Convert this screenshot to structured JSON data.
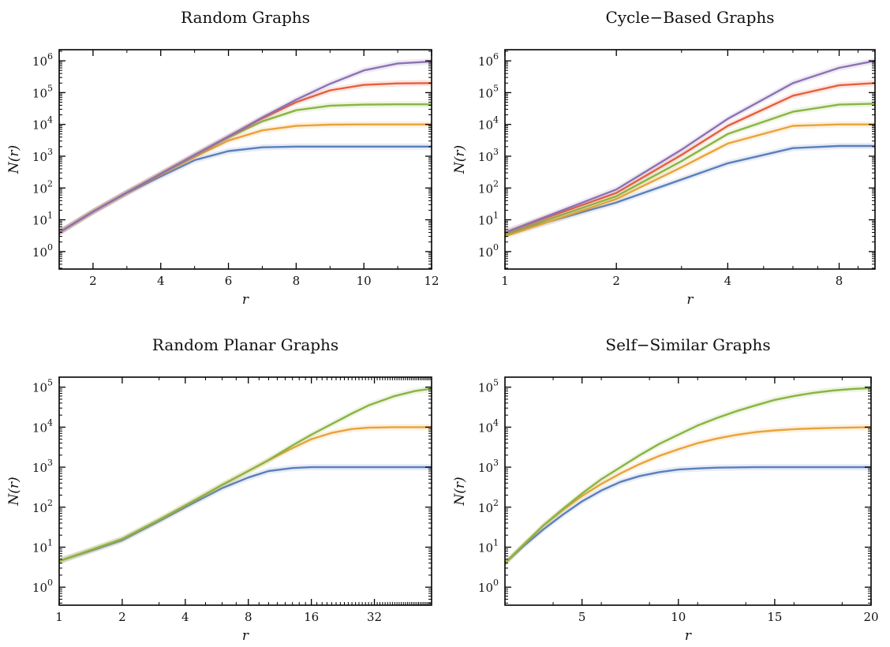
{
  "colors": {
    "blue": "#5b7fbc",
    "orange": "#e8a33a",
    "green": "#8ab443",
    "red": "#e4603d",
    "purple": "#8e72b3"
  },
  "chart_data": [
    {
      "type": "line",
      "title": "Random Graphs",
      "xlabel": "r",
      "ylabel": "N(r)",
      "xscale": "linear",
      "yscale": "log",
      "xlim": [
        1,
        12
      ],
      "ylim_log10": [
        -0.55,
        6.35
      ],
      "xticks": [
        2,
        4,
        6,
        8,
        10,
        12
      ],
      "xtick_labels": [
        "2",
        "4",
        "6",
        "8",
        "10",
        "12"
      ],
      "yticks_log10": [
        0,
        1,
        2,
        3,
        4,
        5,
        6
      ],
      "grid": false,
      "series": [
        {
          "color": "blue",
          "x": [
            1,
            2,
            3,
            4,
            5,
            6,
            7,
            8,
            9,
            10,
            11,
            12
          ],
          "y": [
            4,
            18,
            70,
            230,
            750,
            1450,
            1900,
            2000,
            2000,
            2000,
            2000,
            2000
          ]
        },
        {
          "color": "orange",
          "x": [
            1,
            2,
            3,
            4,
            5,
            6,
            7,
            8,
            9,
            10,
            11,
            12
          ],
          "y": [
            4,
            18,
            72,
            270,
            950,
            3100,
            6500,
            9000,
            9800,
            10000,
            10000,
            10000
          ]
        },
        {
          "color": "green",
          "x": [
            1,
            2,
            3,
            4,
            5,
            6,
            7,
            8,
            9,
            10,
            11,
            12
          ],
          "y": [
            4,
            18,
            72,
            275,
            1050,
            3900,
            12500,
            28000,
            39000,
            42000,
            43000,
            43000
          ]
        },
        {
          "color": "red",
          "x": [
            1,
            2,
            3,
            4,
            5,
            6,
            7,
            8,
            9,
            10,
            11,
            12
          ],
          "y": [
            4,
            18,
            72,
            280,
            1080,
            4100,
            15500,
            50000,
            118000,
            175000,
            195000,
            200000
          ]
        },
        {
          "color": "purple",
          "x": [
            1,
            2,
            3,
            4,
            5,
            6,
            7,
            8,
            9,
            10,
            11,
            12
          ],
          "y": [
            4,
            18,
            72,
            280,
            1100,
            4200,
            16500,
            60000,
            190000,
            500000,
            830000,
            950000
          ]
        }
      ]
    },
    {
      "type": "line",
      "title": "Cycle−Based Graphs",
      "xlabel": "r",
      "ylabel": "N(r)",
      "xscale": "log",
      "yscale": "log",
      "xlim": [
        1,
        10
      ],
      "ylim_log10": [
        -0.55,
        6.35
      ],
      "xticks": [
        1,
        2,
        4,
        8
      ],
      "xtick_labels": [
        "1",
        "2",
        "4",
        "8"
      ],
      "yticks_log10": [
        0,
        1,
        2,
        3,
        4,
        5,
        6
      ],
      "grid": false,
      "series": [
        {
          "color": "blue",
          "x": [
            1,
            2,
            4,
            6,
            8,
            10
          ],
          "y": [
            3.5,
            35,
            600,
            1800,
            2100,
            2100
          ]
        },
        {
          "color": "orange",
          "x": [
            1,
            2,
            3,
            4,
            6,
            8,
            10
          ],
          "y": [
            3,
            45,
            450,
            2500,
            9000,
            10000,
            10000
          ]
        },
        {
          "color": "green",
          "x": [
            1,
            2,
            3,
            4,
            6,
            8,
            10
          ],
          "y": [
            3.5,
            55,
            700,
            5000,
            25000,
            42000,
            45000
          ]
        },
        {
          "color": "red",
          "x": [
            1,
            2,
            3,
            4,
            6,
            8,
            10
          ],
          "y": [
            4,
            70,
            1100,
            9000,
            80000,
            170000,
            200000
          ]
        },
        {
          "color": "purple",
          "x": [
            1,
            2,
            3,
            4,
            6,
            8,
            10
          ],
          "y": [
            4,
            90,
            1600,
            15000,
            200000,
            600000,
            1000000
          ]
        }
      ]
    },
    {
      "type": "line",
      "title": "Random Planar Graphs",
      "xlabel": "r",
      "ylabel": "N(r)",
      "xscale": "log",
      "yscale": "log",
      "xlim": [
        1,
        60
      ],
      "ylim_log10": [
        -0.45,
        5.25
      ],
      "xticks": [
        1,
        2,
        4,
        8,
        16,
        32
      ],
      "xtick_labels": [
        "1",
        "2",
        "4",
        "8",
        "16",
        "32"
      ],
      "yticks_log10": [
        0,
        1,
        2,
        3,
        4,
        5
      ],
      "grid": false,
      "series": [
        {
          "color": "blue",
          "x": [
            1,
            1.5,
            2,
            3,
            4,
            6,
            8,
            10,
            13,
            16,
            20,
            30,
            40,
            60
          ],
          "y": [
            4.5,
            9,
            15,
            45,
            100,
            300,
            550,
            800,
            950,
            1000,
            1000,
            1000,
            1000,
            1000
          ]
        },
        {
          "color": "orange",
          "x": [
            1,
            2,
            3,
            4,
            6,
            8,
            10,
            13,
            16,
            20,
            25,
            30,
            40,
            60
          ],
          "y": [
            4.5,
            16,
            48,
            110,
            360,
            800,
            1500,
            3000,
            5000,
            7200,
            9000,
            9700,
            10000,
            10000
          ]
        },
        {
          "color": "green",
          "x": [
            1,
            2,
            3,
            4,
            6,
            8,
            10,
            13,
            16,
            20,
            25,
            30,
            40,
            50,
            60
          ],
          "y": [
            4.5,
            16,
            48,
            110,
            360,
            800,
            1500,
            3500,
            6500,
            12000,
            22000,
            35000,
            60000,
            80000,
            92000
          ]
        }
      ]
    },
    {
      "type": "line",
      "title": "Self−Similar Graphs",
      "xlabel": "r",
      "ylabel": "N(r)",
      "xscale": "linear",
      "yscale": "log",
      "xlim": [
        1,
        20
      ],
      "ylim_log10": [
        -0.45,
        5.25
      ],
      "xticks": [
        5,
        10,
        15,
        20
      ],
      "xtick_labels": [
        "5",
        "10",
        "15",
        "20"
      ],
      "yticks_log10": [
        0,
        1,
        2,
        3,
        4,
        5
      ],
      "grid": false,
      "series": [
        {
          "color": "blue",
          "x": [
            1,
            2,
            3,
            4,
            5,
            6,
            7,
            8,
            9,
            10,
            11,
            12,
            14,
            16,
            18,
            20
          ],
          "y": [
            4,
            11,
            28,
            65,
            140,
            260,
            430,
            600,
            750,
            870,
            930,
            970,
            1000,
            1000,
            1000,
            1000
          ]
        },
        {
          "color": "orange",
          "x": [
            1,
            2,
            3,
            4,
            5,
            6,
            7,
            8,
            9,
            10,
            11,
            12,
            13,
            14,
            15,
            16,
            17,
            18,
            19,
            20
          ],
          "y": [
            4,
            12,
            35,
            85,
            190,
            380,
            700,
            1200,
            1900,
            2800,
            4000,
            5200,
            6400,
            7500,
            8300,
            8900,
            9300,
            9600,
            9800,
            10000
          ]
        },
        {
          "color": "green",
          "x": [
            1,
            2,
            3,
            4,
            5,
            6,
            7,
            8,
            9,
            10,
            11,
            12,
            13,
            14,
            15,
            16,
            17,
            18,
            19,
            20
          ],
          "y": [
            4,
            12,
            35,
            90,
            220,
            500,
            1000,
            2000,
            3800,
            6500,
            11000,
            17000,
            25000,
            35000,
            48000,
            60000,
            72000,
            82000,
            90000,
            95000
          ]
        }
      ]
    }
  ]
}
